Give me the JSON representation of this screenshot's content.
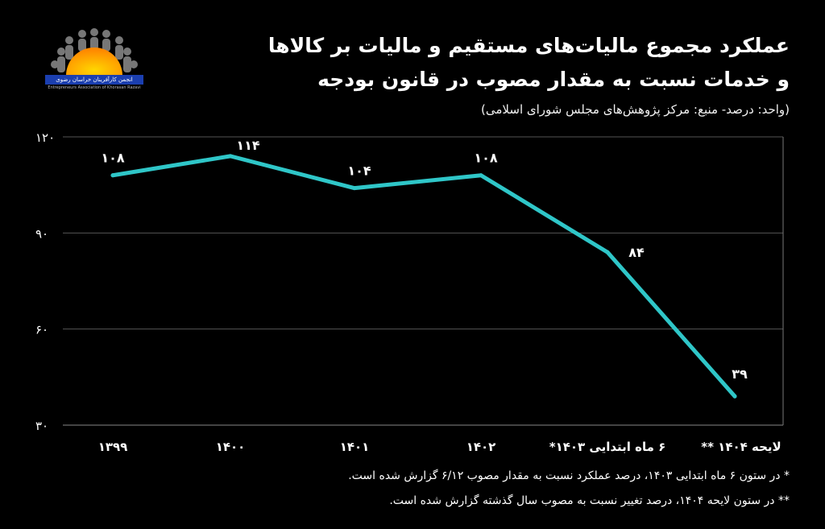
{
  "logo": {
    "name": "sun-people-logo",
    "text": "انجمن کارآفرینان خراسان رضوی",
    "subtext": "Entrepreneurs Association of Khorasan Razavi"
  },
  "header": {
    "title_line1": "عملکرد مجموع مالیات‌های مستقیم و مالیات بر کالاها",
    "title_line2": "و خدمات نسبت به مقدار مصوب در قانون بودجه",
    "unit": "(واحد: درصد- منبع: مرکز پژوهش‌های مجلس شورای اسلامی)"
  },
  "notes": [
    "* در ستون ۶ ماه ابتدایی ۱۴۰۳، درصد عملکرد نسبت به مقدار مصوب ۶/۱۲ گزارش شده است.",
    "** در ستون لایحه ۱۴۰۴، درصد تغییر نسبت به مصوب سال گذشته گزارش شده است."
  ],
  "colors": {
    "line": "#2fc6c8",
    "background": "#000000",
    "grid": "#555555",
    "text": "#ffffff"
  },
  "chart_data": {
    "type": "line",
    "title": "عملکرد مجموع مالیات‌های مستقیم و مالیات بر کالاها و خدمات نسبت به مقدار مصوب در قانون بودجه",
    "categories": [
      "۱۳۹۹",
      "۱۴۰۰",
      "۱۴۰۱",
      "۱۴۰۲",
      "۶ ماه ابتدایی ۱۴۰۳*",
      "لایحه ۱۴۰۴ **"
    ],
    "values": [
      108,
      114,
      104,
      108,
      84,
      39
    ],
    "value_labels": [
      "۱۰۸",
      "۱۱۴",
      "۱۰۴",
      "۱۰۸",
      "۸۴",
      "۳۹"
    ],
    "yticks": [
      30,
      60,
      90,
      120
    ],
    "ytick_labels": [
      "۳۰",
      "۶۰",
      "۹۰",
      "۱۲۰"
    ],
    "ylim": [
      30,
      120
    ],
    "grid": true,
    "legend": "none"
  }
}
